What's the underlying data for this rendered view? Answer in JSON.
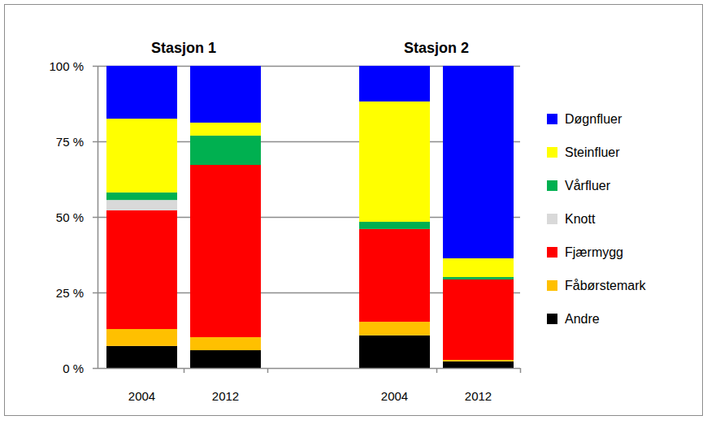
{
  "chart_data": [
    {
      "type": "bar",
      "stacked": true,
      "title": "Stasjon 1",
      "categories": [
        "2004",
        "2012"
      ],
      "ylim": [
        0,
        100
      ],
      "yticks": [
        {
          "value": 0,
          "label": "0 %"
        },
        {
          "value": 25,
          "label": "25 %"
        },
        {
          "value": 50,
          "label": "50 %"
        },
        {
          "value": 75,
          "label": "75 %"
        },
        {
          "value": 100,
          "label": "100 %"
        }
      ],
      "grid": true,
      "series": [
        {
          "name": "Andre",
          "color": "#000000",
          "values": [
            7.3,
            5.9
          ]
        },
        {
          "name": "Fåbørstemark",
          "color": "#ffc000",
          "values": [
            5.6,
            4.3
          ]
        },
        {
          "name": "Fjærmygg",
          "color": "#ff0000",
          "values": [
            39.3,
            57.0
          ]
        },
        {
          "name": "Knott",
          "color": "#d9d9d9",
          "values": [
            3.4,
            0
          ]
        },
        {
          "name": "Vårfluer",
          "color": "#00b050",
          "values": [
            2.5,
            9.7
          ]
        },
        {
          "name": "Steinfluer",
          "color": "#ffff00",
          "values": [
            24.4,
            4.3
          ]
        },
        {
          "name": "Døgnfluer",
          "color": "#0000ff",
          "values": [
            17.5,
            18.8
          ]
        }
      ]
    },
    {
      "type": "bar",
      "stacked": true,
      "title": "Stasjon 2",
      "categories": [
        "2004",
        "2012"
      ],
      "ylim": [
        0,
        100
      ],
      "yticks": [
        0,
        25,
        50,
        75,
        100
      ],
      "tick_labels": "x",
      "grid": true,
      "legend": "right",
      "series": [
        {
          "name": "Andre",
          "color": "#000000",
          "values": [
            10.8,
            2.2
          ]
        },
        {
          "name": "Fåbørstemark",
          "color": "#ffc000",
          "values": [
            4.5,
            0.5
          ]
        },
        {
          "name": "Fjærmygg",
          "color": "#ff0000",
          "values": [
            30.7,
            26.6
          ]
        },
        {
          "name": "Knott",
          "color": "#d9d9d9",
          "values": [
            0,
            0
          ]
        },
        {
          "name": "Vårfluer",
          "color": "#00b050",
          "values": [
            2.4,
            0.8
          ]
        },
        {
          "name": "Steinfluer",
          "color": "#ffff00",
          "values": [
            39.8,
            6.2
          ]
        },
        {
          "name": "Døgnfluer",
          "color": "#0000ff",
          "values": [
            11.8,
            63.7
          ]
        }
      ]
    }
  ]
}
